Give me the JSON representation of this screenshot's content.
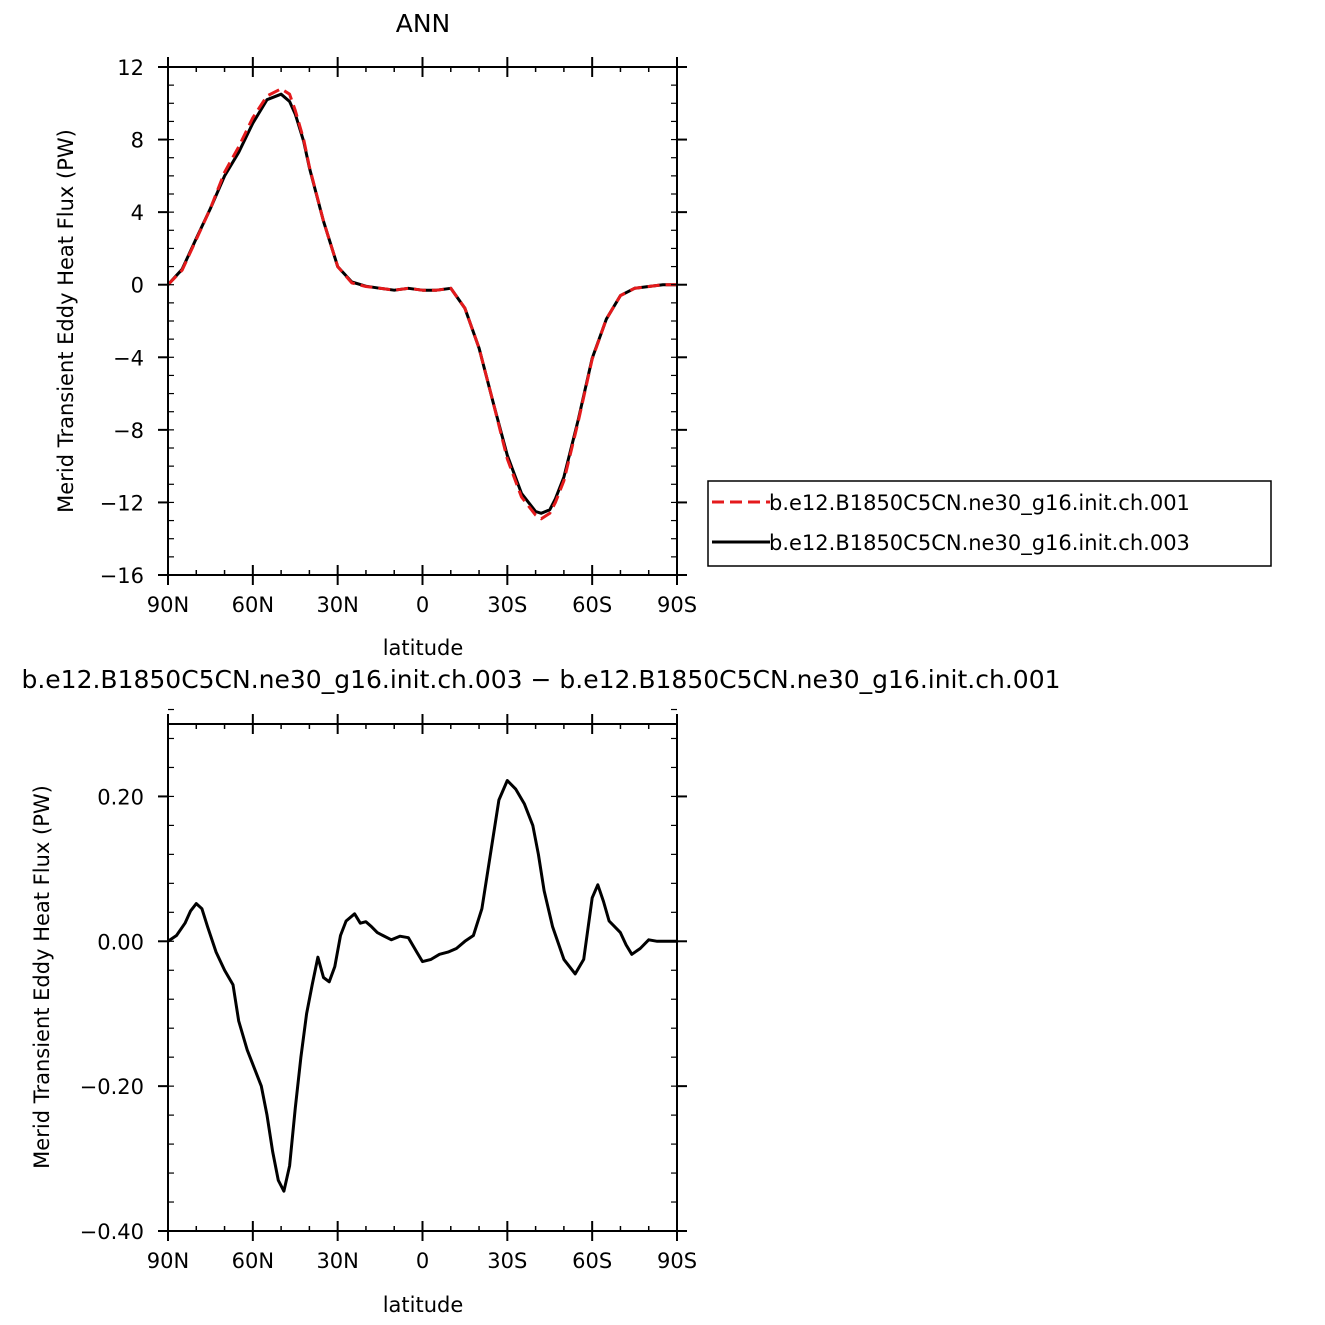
{
  "chart_data": [
    {
      "type": "line",
      "title": "ANN",
      "xlabel": "latitude",
      "ylabel": "Merid Transient Eddy Heat Flux (PW)",
      "xlim": [
        90,
        -90
      ],
      "ylim": [
        -16,
        12
      ],
      "x_tick_values": [
        90,
        60,
        30,
        0,
        -30,
        -60,
        -90
      ],
      "x_tick_labels": [
        "90N",
        "60N",
        "30N",
        "0",
        "30S",
        "60S",
        "90S"
      ],
      "y_tick_values": [
        12,
        8,
        4,
        0,
        -4,
        -8,
        -12,
        -16
      ],
      "y_tick_labels": [
        "12",
        "8",
        "4",
        "0",
        "−4",
        "−8",
        "−12",
        "−16"
      ],
      "legend_position": "right",
      "series": [
        {
          "name": "b.e12.B1850C5CN.ne30_g16.init.ch.001",
          "color": "#e41a1c",
          "dash": "dashed",
          "x": [
            90,
            85,
            80,
            75,
            70,
            65,
            60,
            55,
            50,
            47,
            45,
            42,
            40,
            35,
            30,
            25,
            20,
            15,
            10,
            5,
            0,
            -5,
            -10,
            -15,
            -20,
            -25,
            -30,
            -35,
            -40,
            -42,
            -45,
            -47,
            -50,
            -55,
            -60,
            -65,
            -70,
            -75,
            -80,
            -85,
            -90
          ],
          "y": [
            0,
            0.8,
            2.5,
            4.2,
            6.2,
            7.6,
            9.2,
            10.4,
            10.8,
            10.5,
            9.6,
            8.0,
            6.5,
            3.5,
            1.0,
            0.1,
            -0.1,
            -0.2,
            -0.3,
            -0.2,
            -0.3,
            -0.3,
            -0.2,
            -1.3,
            -3.5,
            -6.5,
            -9.6,
            -11.7,
            -12.7,
            -12.9,
            -12.6,
            -12.0,
            -10.8,
            -7.6,
            -4.1,
            -1.9,
            -0.6,
            -0.2,
            -0.1,
            0,
            0
          ]
        },
        {
          "name": "b.e12.B1850C5CN.ne30_g16.init.ch.003",
          "color": "#000000",
          "dash": "solid",
          "x": [
            90,
            85,
            80,
            75,
            70,
            65,
            60,
            55,
            50,
            47,
            45,
            42,
            40,
            35,
            30,
            25,
            20,
            15,
            10,
            5,
            0,
            -5,
            -10,
            -15,
            -20,
            -25,
            -30,
            -35,
            -40,
            -42,
            -45,
            -47,
            -50,
            -55,
            -60,
            -65,
            -70,
            -75,
            -80,
            -85,
            -90
          ],
          "y": [
            0,
            0.85,
            2.55,
            4.2,
            6.0,
            7.3,
            8.9,
            10.2,
            10.5,
            10.1,
            9.4,
            7.9,
            6.45,
            3.5,
            1.0,
            0.15,
            -0.08,
            -0.2,
            -0.3,
            -0.2,
            -0.3,
            -0.3,
            -0.2,
            -1.3,
            -3.5,
            -6.5,
            -9.4,
            -11.5,
            -12.5,
            -12.6,
            -12.4,
            -11.8,
            -10.6,
            -7.5,
            -4.05,
            -1.9,
            -0.6,
            -0.2,
            -0.1,
            0,
            0
          ]
        }
      ]
    },
    {
      "type": "line",
      "title": "b.e12.B1850C5CN.ne30_g16.init.ch.003 − b.e12.B1850C5CN.ne30_g16.init.ch.001",
      "xlabel": "latitude",
      "ylabel": "Merid Transient Eddy Heat Flux (PW)",
      "xlim": [
        90,
        -90
      ],
      "ylim": [
        -0.4,
        0.3
      ],
      "x_tick_values": [
        90,
        60,
        30,
        0,
        -30,
        -60,
        -90
      ],
      "x_tick_labels": [
        "90N",
        "60N",
        "30N",
        "0",
        "30S",
        "60S",
        "90S"
      ],
      "y_tick_values": [
        0.2,
        0.0,
        -0.2,
        -0.4
      ],
      "y_tick_labels": [
        "0.20",
        "0.00",
        "−0.20",
        "−0.40"
      ],
      "series": [
        {
          "color": "#000000",
          "dash": "solid",
          "x": [
            90,
            87,
            84,
            82,
            80,
            78,
            76,
            73,
            70,
            67,
            65,
            62,
            59,
            57,
            55,
            53,
            51,
            49,
            47,
            45,
            43,
            41,
            39,
            37,
            35,
            33,
            31,
            29,
            27,
            24,
            22,
            20,
            18,
            16,
            14,
            11,
            8,
            5,
            2,
            0,
            -3,
            -6,
            -9,
            -12,
            -15,
            -18,
            -21,
            -24,
            -27,
            -30,
            -33,
            -36,
            -39,
            -41,
            -43,
            -46,
            -50,
            -54,
            -57,
            -60,
            -62,
            -64,
            -66,
            -68,
            -70,
            -72,
            -74,
            -77,
            -80,
            -83,
            -85,
            -87,
            -89,
            -90
          ],
          "y": [
            0,
            0.008,
            0.025,
            0.042,
            0.052,
            0.045,
            0.02,
            -0.015,
            -0.04,
            -0.06,
            -0.11,
            -0.15,
            -0.18,
            -0.2,
            -0.24,
            -0.29,
            -0.33,
            -0.345,
            -0.31,
            -0.23,
            -0.16,
            -0.1,
            -0.06,
            -0.022,
            -0.05,
            -0.056,
            -0.035,
            0.008,
            0.028,
            0.038,
            0.025,
            0.027,
            0.02,
            0.012,
            0.008,
            0.002,
            0.007,
            0.005,
            -0.015,
            -0.028,
            -0.025,
            -0.018,
            -0.015,
            -0.01,
            0.0,
            0.008,
            0.045,
            0.12,
            0.195,
            0.222,
            0.21,
            0.19,
            0.16,
            0.12,
            0.07,
            0.02,
            -0.025,
            -0.045,
            -0.025,
            0.06,
            0.078,
            0.055,
            0.028,
            0.02,
            0.012,
            -0.005,
            -0.018,
            -0.01,
            0.002,
            0.0,
            0.0,
            0.0,
            0.0,
            0.0
          ]
        }
      ]
    }
  ]
}
